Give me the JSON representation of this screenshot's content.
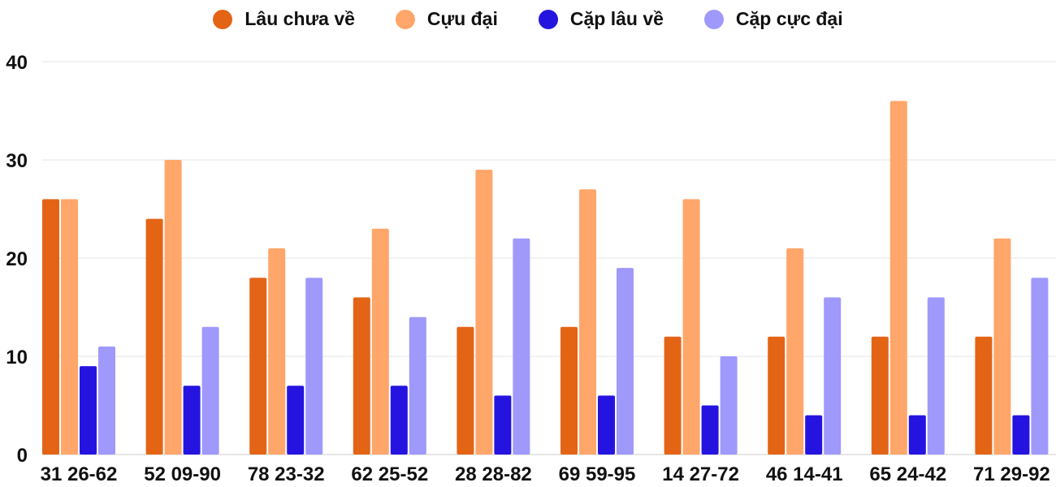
{
  "chart_data": {
    "type": "bar",
    "title": "",
    "xlabel": "",
    "ylabel": "",
    "ylim": [
      0,
      40
    ],
    "yticks": [
      0,
      10,
      20,
      30,
      40
    ],
    "grid": true,
    "legend_placement": "top-center",
    "categories": [
      "31 26-62",
      "52 09-90",
      "78 23-32",
      "62 25-52",
      "28 28-82",
      "69 59-95",
      "14 27-72",
      "46 14-41",
      "65 24-42",
      "71 29-92"
    ],
    "series": [
      {
        "name": "Lâu chưa về",
        "color": "#e46416",
        "values": [
          26,
          24,
          18,
          16,
          13,
          13,
          12,
          12,
          12,
          12
        ]
      },
      {
        "name": "Cựu đại",
        "color": "#ffa66b",
        "values": [
          26,
          30,
          21,
          23,
          29,
          27,
          26,
          21,
          36,
          22
        ]
      },
      {
        "name": "Cặp lâu về",
        "color": "#2514e0",
        "values": [
          9,
          7,
          7,
          7,
          6,
          6,
          5,
          4,
          4,
          4
        ]
      },
      {
        "name": "Cặp cực đại",
        "color": "#9f99fc",
        "values": [
          11,
          13,
          18,
          14,
          22,
          19,
          10,
          16,
          16,
          18
        ]
      }
    ]
  }
}
